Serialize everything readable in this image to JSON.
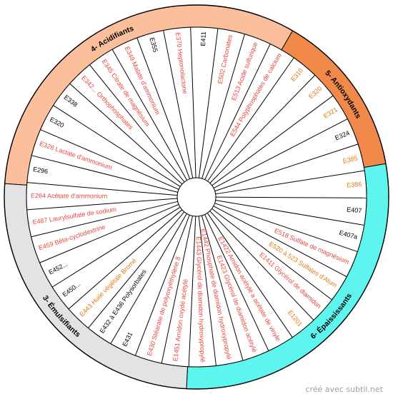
{
  "sectors": [
    {
      "name": "4- Acidifiants",
      "color": "#fbbf9c",
      "labelColor": "#000000"
    },
    {
      "name": "5- Antioxydants",
      "color": "#f0894a",
      "labelColor": "#000000"
    },
    {
      "name": "6- Épaississants",
      "color": "#5ff5ef",
      "labelColor": "#000000"
    },
    {
      "name": "3- Émulsifiants",
      "color": "#e3e3e3",
      "labelColor": "#000000"
    }
  ],
  "items": [
    {
      "label": "E411",
      "color": "#000000"
    },
    {
      "label": "E502 Carbonates",
      "color": "#e8473f"
    },
    {
      "label": "E513 Acide sulfurique",
      "color": "#e8473f"
    },
    {
      "label": "E544 Polyphosphates de calcium",
      "color": "#e8473f"
    },
    {
      "label": "E310",
      "color": "#e07b10"
    },
    {
      "label": "E320",
      "color": "#e07b10"
    },
    {
      "label": "E321",
      "color": "#e07b10"
    },
    {
      "label": "E324",
      "color": "#000000"
    },
    {
      "label": "E385",
      "color": "#e07b10"
    },
    {
      "label": "E386",
      "color": "#e07b10"
    },
    {
      "label": "E407",
      "color": "#000000"
    },
    {
      "label": "E407a",
      "color": "#000000"
    },
    {
      "label": "E518 Sulfate de magnésium",
      "color": "#e8473f"
    },
    {
      "label": "E520 à 523 Sulfates d'Alum",
      "color": "#e07b10"
    },
    {
      "label": "E1411 Glycérol de diamidon",
      "color": "#e8473f"
    },
    {
      "label": "E1201",
      "color": "#e07b10"
    },
    {
      "label": "E1422 Amidon acétylé a acétate de vinyle",
      "color": "#e8473f"
    },
    {
      "label": "E1423 Glycérol de diamidon acétylé",
      "color": "#e8473f"
    },
    {
      "label": "E1442 Phosphate de diamidon hydroxypropylé",
      "color": "#e8473f"
    },
    {
      "label": "E1443 Glycérol de diamidon hydroxypropylé",
      "color": "#e8473f"
    },
    {
      "label": "E1451 Amidon oxydé acétylé",
      "color": "#e8473f"
    },
    {
      "label": "E430 Stéarate de polyoxyéthylène 8",
      "color": "#e8473f"
    },
    {
      "label": "E431",
      "color": "#000000"
    },
    {
      "label": "E432 à E436 Polysorbates",
      "color": "#000000"
    },
    {
      "label": "E443 Huile végétale Bromé",
      "color": "#e07b10"
    },
    {
      "label": "E450...",
      "color": "#000000"
    },
    {
      "label": "E452...",
      "color": "#000000"
    },
    {
      "label": "E459 Bêta-cyclodextrine",
      "color": "#e8473f"
    },
    {
      "label": "E487 Laurylsulfate de sodium",
      "color": "#e8473f"
    },
    {
      "label": "E264 Acétate d'ammonium",
      "color": "#e8473f"
    },
    {
      "label": "E296",
      "color": "#000000"
    },
    {
      "label": "E328 Lactate d'ammonium",
      "color": "#e8473f"
    },
    {
      "label": "E320",
      "color": "#000000"
    },
    {
      "label": "E338",
      "color": "#000000"
    },
    {
      "label": "E342... Orthophosphates",
      "color": "#e8473f"
    },
    {
      "label": "E345 Citrate de magnésium",
      "color": "#e8473f"
    },
    {
      "label": "E349 Malate d'ammonium",
      "color": "#e8473f"
    },
    {
      "label": "E355",
      "color": "#000000"
    },
    {
      "label": "E370 Heptonolactone",
      "color": "#e8473f"
    }
  ],
  "footer": "créé avec subtil.net"
}
